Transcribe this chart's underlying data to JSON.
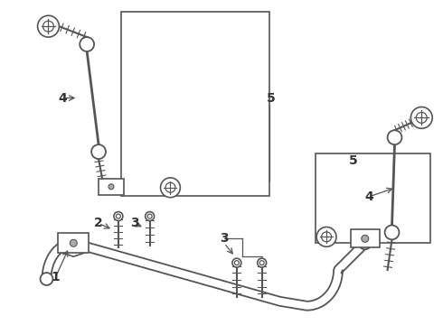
{
  "bg_color": "#ffffff",
  "line_color": "#555555",
  "label_color": "#333333",
  "figsize": [
    4.9,
    3.6
  ],
  "dpi": 100
}
